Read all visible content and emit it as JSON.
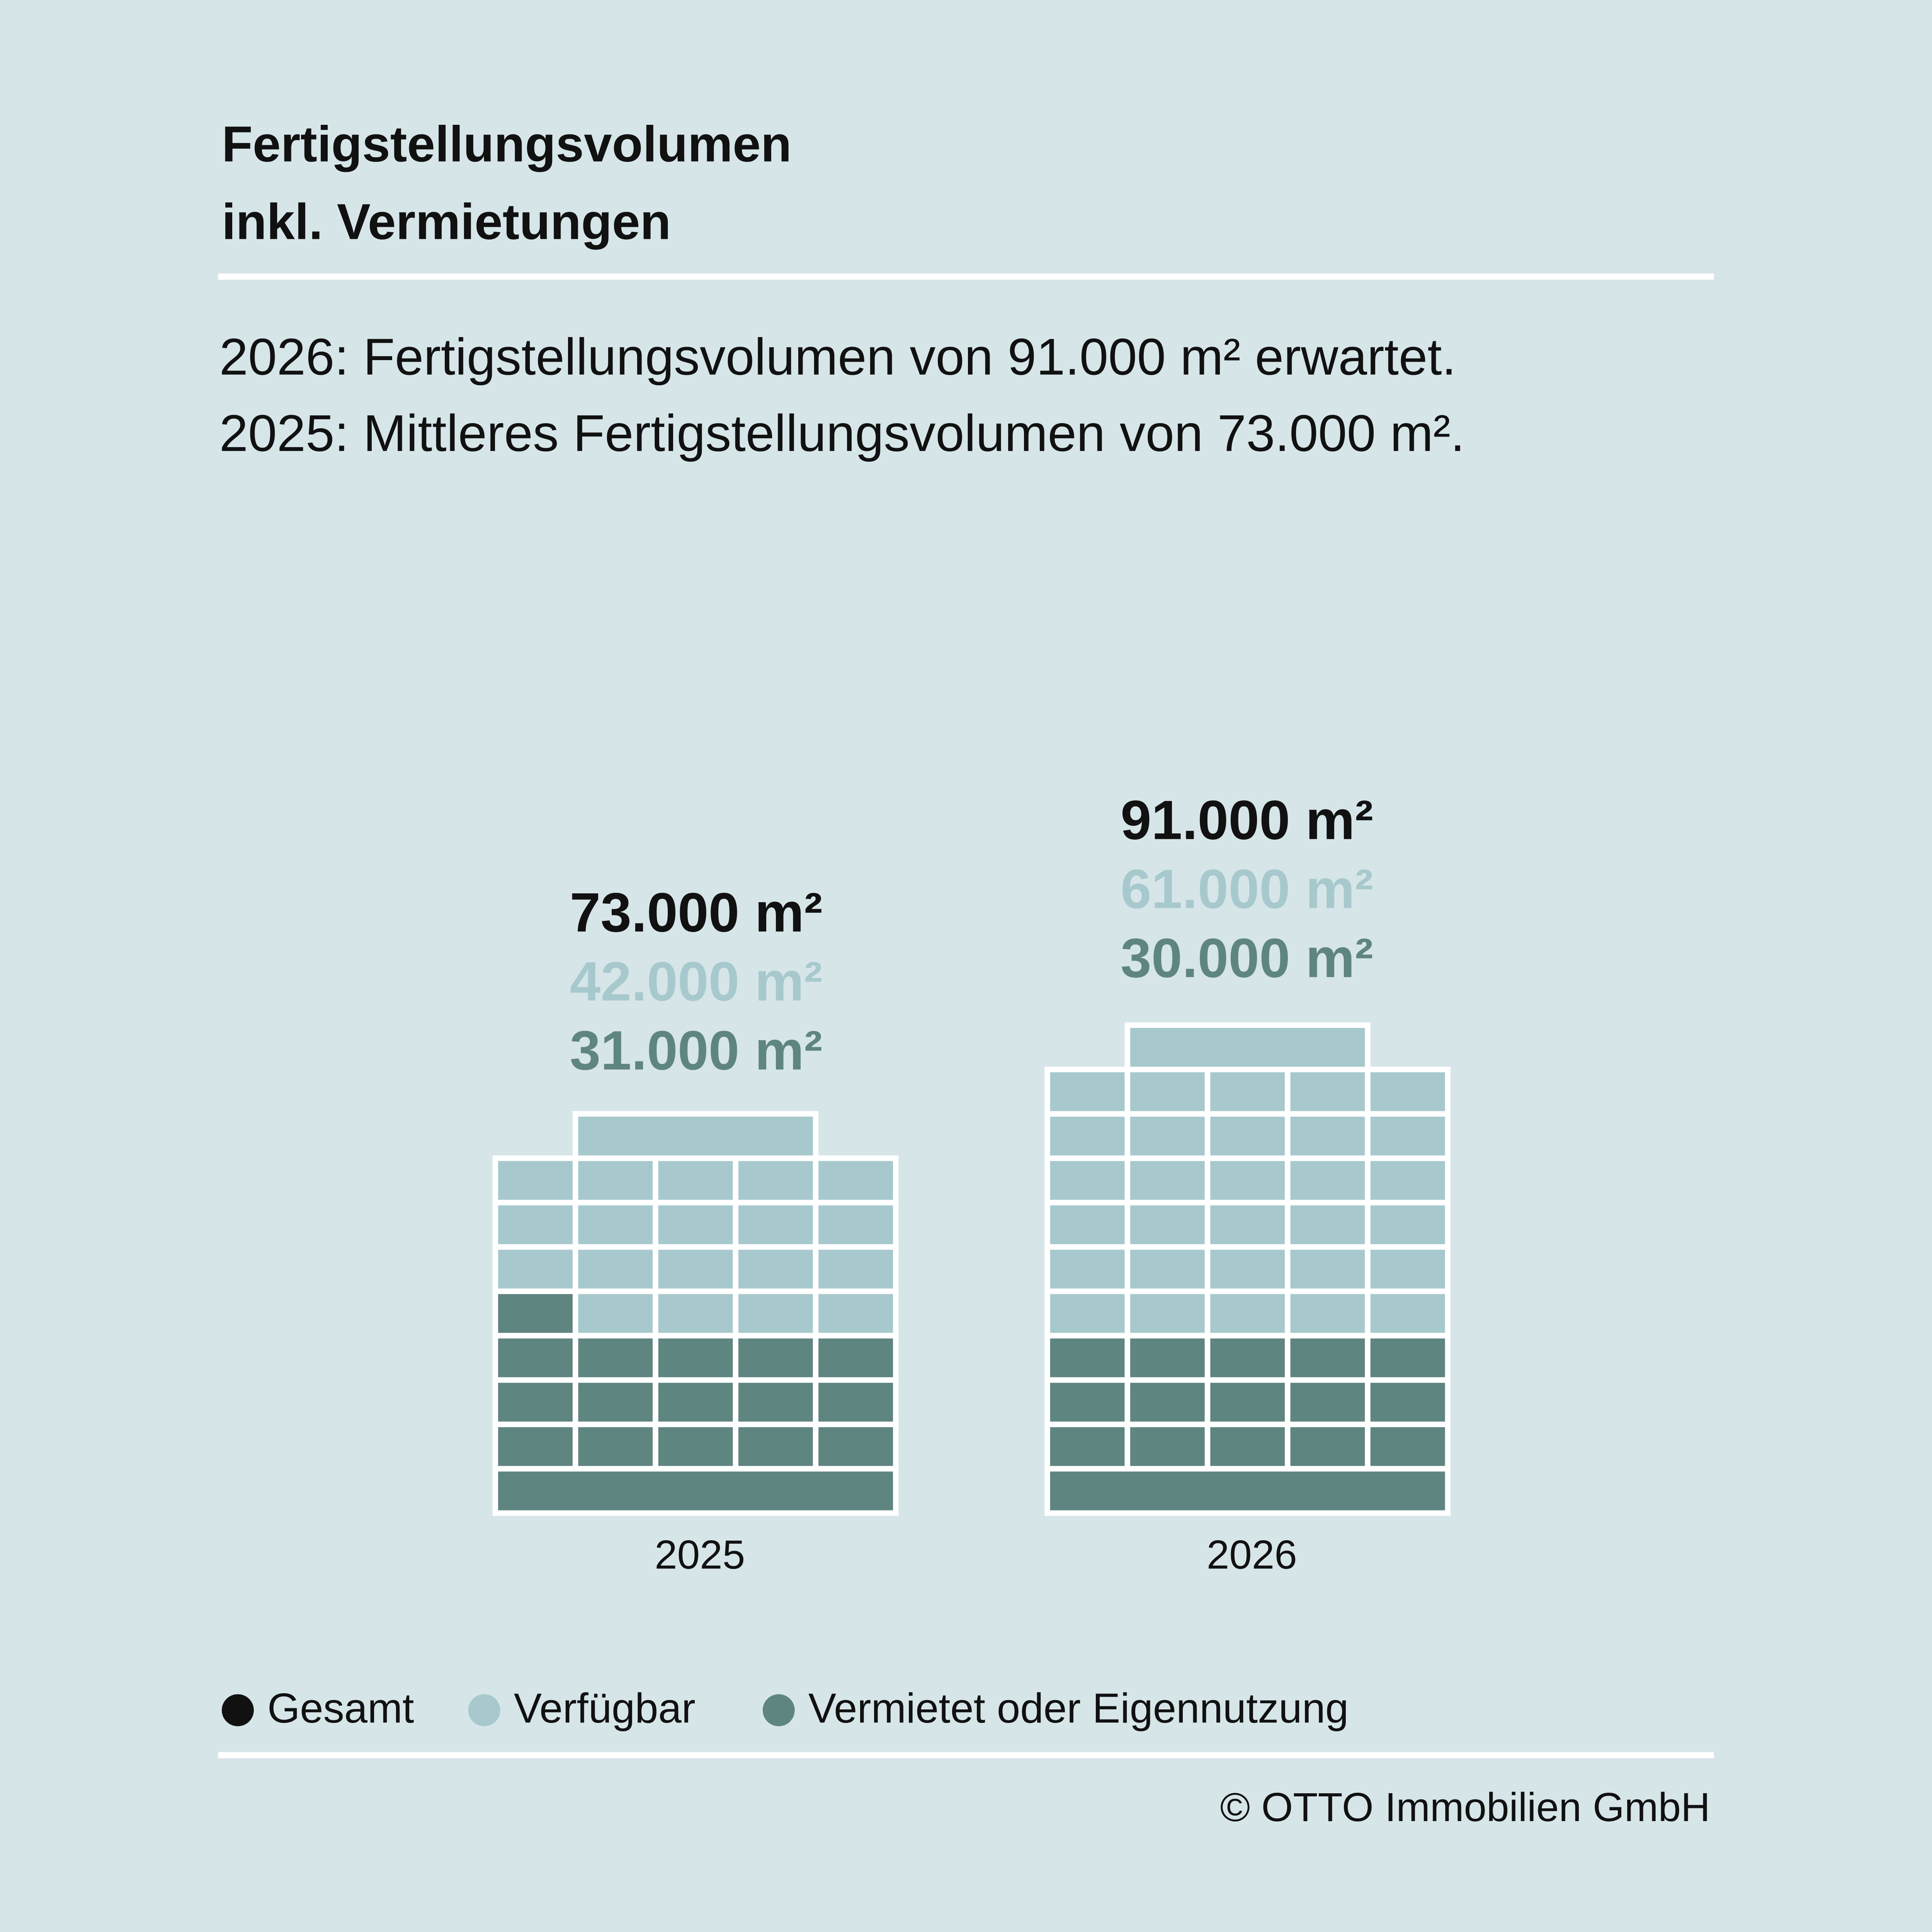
{
  "title_lines": [
    "Fertigstellungsvolumen",
    "inkl. Vermietungen"
  ],
  "subtitle_lines": [
    "2026: Fertigstellungsvolumen von 91.000 m² erwartet.",
    "2025: Mittleres Fertigstellungsvolumen von 73.000 m²."
  ],
  "colors": {
    "background": "#d6e5e8",
    "gesamt": "#111111",
    "verfuegbar": "#a7c9cd",
    "vermietet": "#5f8581",
    "grid": "#ffffff"
  },
  "chart_data": {
    "type": "bar",
    "stacked": true,
    "categories": [
      "2025",
      "2026"
    ],
    "unit": "m²",
    "series": [
      {
        "name": "Verfügbar",
        "values": [
          42000,
          61000
        ],
        "labels": [
          "42.000 m²",
          "61.000 m²"
        ]
      },
      {
        "name": "Vermietet oder Eigennutzung",
        "values": [
          31000,
          30000
        ],
        "labels": [
          "31.000 m²",
          "30.000 m²"
        ]
      }
    ],
    "totals": {
      "name": "Gesamt",
      "values": [
        73000,
        91000
      ],
      "labels": [
        "73.000 m²",
        "91.000 m²"
      ]
    },
    "legend": [
      "Gesamt",
      "Verfügbar",
      "Vermietet oder Eigennutzung"
    ],
    "legend_position": "bottom"
  },
  "copyright": "© OTTO Immobilien GmbH"
}
